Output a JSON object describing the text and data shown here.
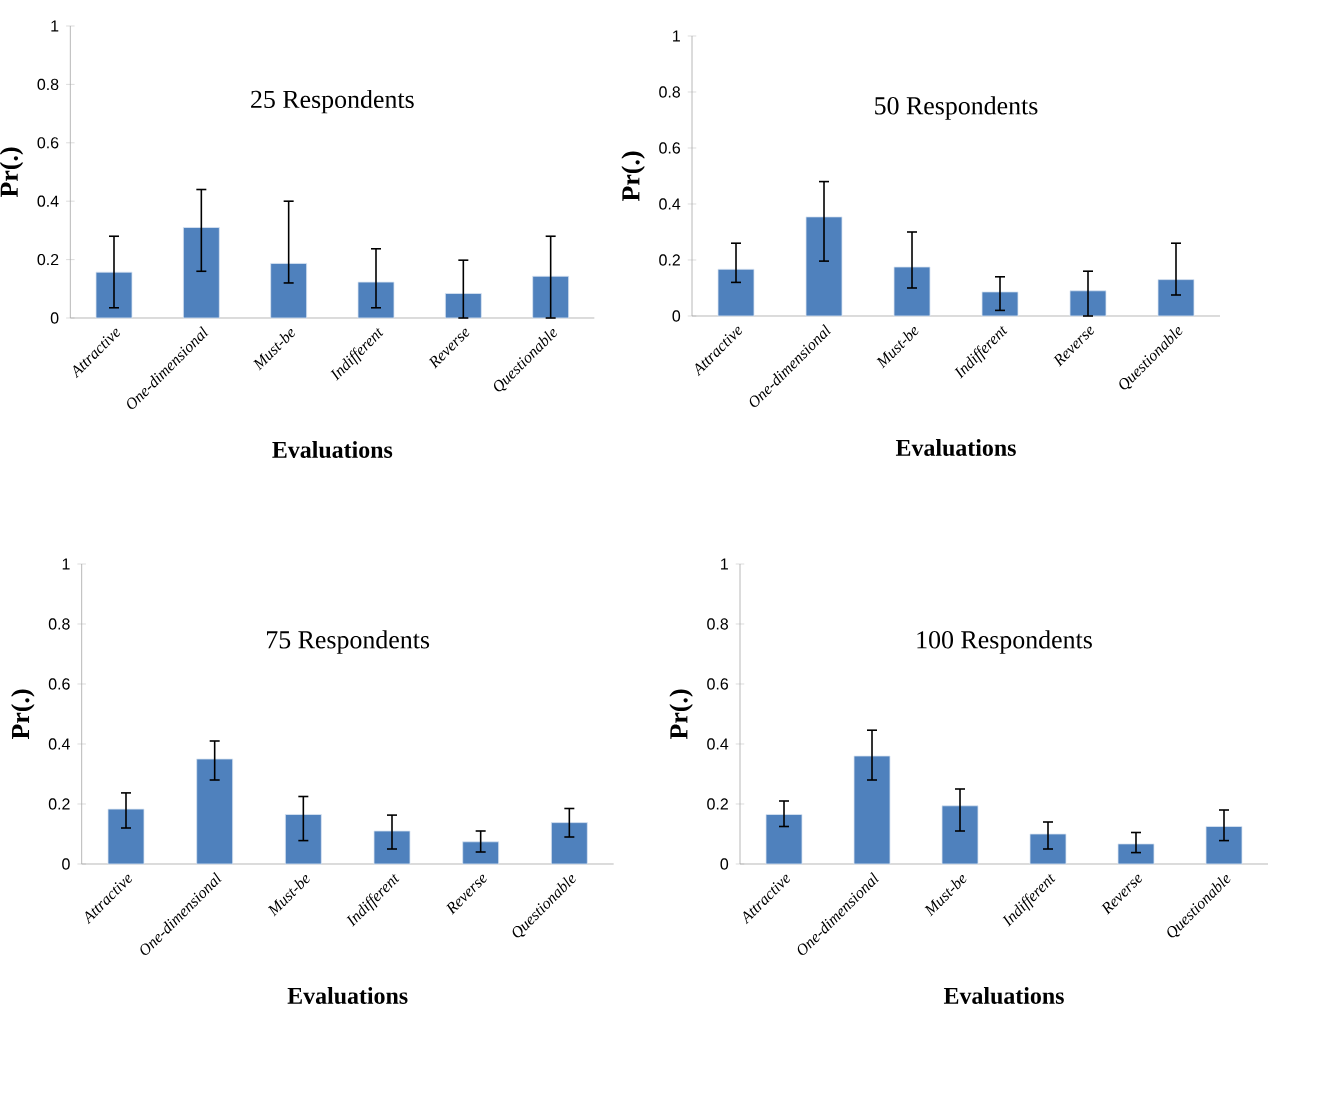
{
  "chart_data": [
    {
      "type": "bar",
      "title": "25 Respondents",
      "xlabel": "Evaluations",
      "ylabel": "Pr(.)",
      "categories": [
        "Attractive",
        "One-dimensional",
        "Must-be",
        "Indifferent",
        "Reverse",
        "Questionable"
      ],
      "color": "#4f81bd",
      "values": [
        0.157,
        0.31,
        0.187,
        0.123,
        0.084,
        0.143
      ],
      "errors": [
        [
          0.035,
          0.28
        ],
        [
          0.16,
          0.44
        ],
        [
          0.12,
          0.4
        ],
        [
          0.035,
          0.237
        ],
        [
          0,
          0.198
        ],
        [
          0,
          0.28
        ]
      ],
      "ylim": [
        0,
        1
      ],
      "yticks": [
        0,
        0.2,
        0.4,
        0.6,
        0.8,
        1
      ]
    },
    {
      "type": "bar",
      "title": "50  Respondents",
      "xlabel": "Evaluations",
      "ylabel": "Pr(.)",
      "categories": [
        "Attractive",
        "One-dimensional",
        "Must-be",
        "Indifferent",
        "Reverse",
        "Questionable"
      ],
      "color": "#4f81bd",
      "values": [
        0.167,
        0.354,
        0.175,
        0.086,
        0.09,
        0.13
      ],
      "errors": [
        [
          0.12,
          0.26
        ],
        [
          0.196,
          0.48
        ],
        [
          0.1,
          0.3
        ],
        [
          0.02,
          0.14
        ],
        [
          0,
          0.16
        ],
        [
          0.075,
          0.26
        ]
      ],
      "ylim": [
        0,
        1
      ],
      "yticks": [
        0,
        0.2,
        0.4,
        0.6,
        0.8,
        1
      ]
    },
    {
      "type": "bar",
      "title": "75  Respondents",
      "xlabel": "Evaluations",
      "ylabel": "Pr(.)",
      "categories": [
        "Attractive",
        "One-dimensional",
        "Must-be",
        "Indifferent",
        "Reverse",
        "Questionable"
      ],
      "color": "#4f81bd",
      "values": [
        0.183,
        0.35,
        0.165,
        0.11,
        0.074,
        0.138
      ],
      "errors": [
        [
          0.12,
          0.237
        ],
        [
          0.28,
          0.41
        ],
        [
          0.078,
          0.225
        ],
        [
          0.05,
          0.163
        ],
        [
          0.04,
          0.11
        ],
        [
          0.09,
          0.185
        ]
      ],
      "ylim": [
        0,
        1
      ],
      "yticks": [
        0,
        0.2,
        0.4,
        0.6,
        0.8,
        1
      ]
    },
    {
      "type": "bar",
      "title": "100  Respondents",
      "xlabel": "Evaluations",
      "ylabel": "Pr(.)",
      "categories": [
        "Attractive",
        "One-dimensional",
        "Must-be",
        "Indifferent",
        "Reverse",
        "Questionable"
      ],
      "color": "#4f81bd",
      "values": [
        0.165,
        0.36,
        0.194,
        0.1,
        0.067,
        0.125
      ],
      "errors": [
        [
          0.125,
          0.21
        ],
        [
          0.28,
          0.446
        ],
        [
          0.11,
          0.25
        ],
        [
          0.05,
          0.14
        ],
        [
          0.038,
          0.105
        ],
        [
          0.078,
          0.18
        ]
      ],
      "ylim": [
        0,
        1
      ],
      "yticks": [
        0,
        0.2,
        0.4,
        0.6,
        0.8,
        1
      ]
    }
  ]
}
